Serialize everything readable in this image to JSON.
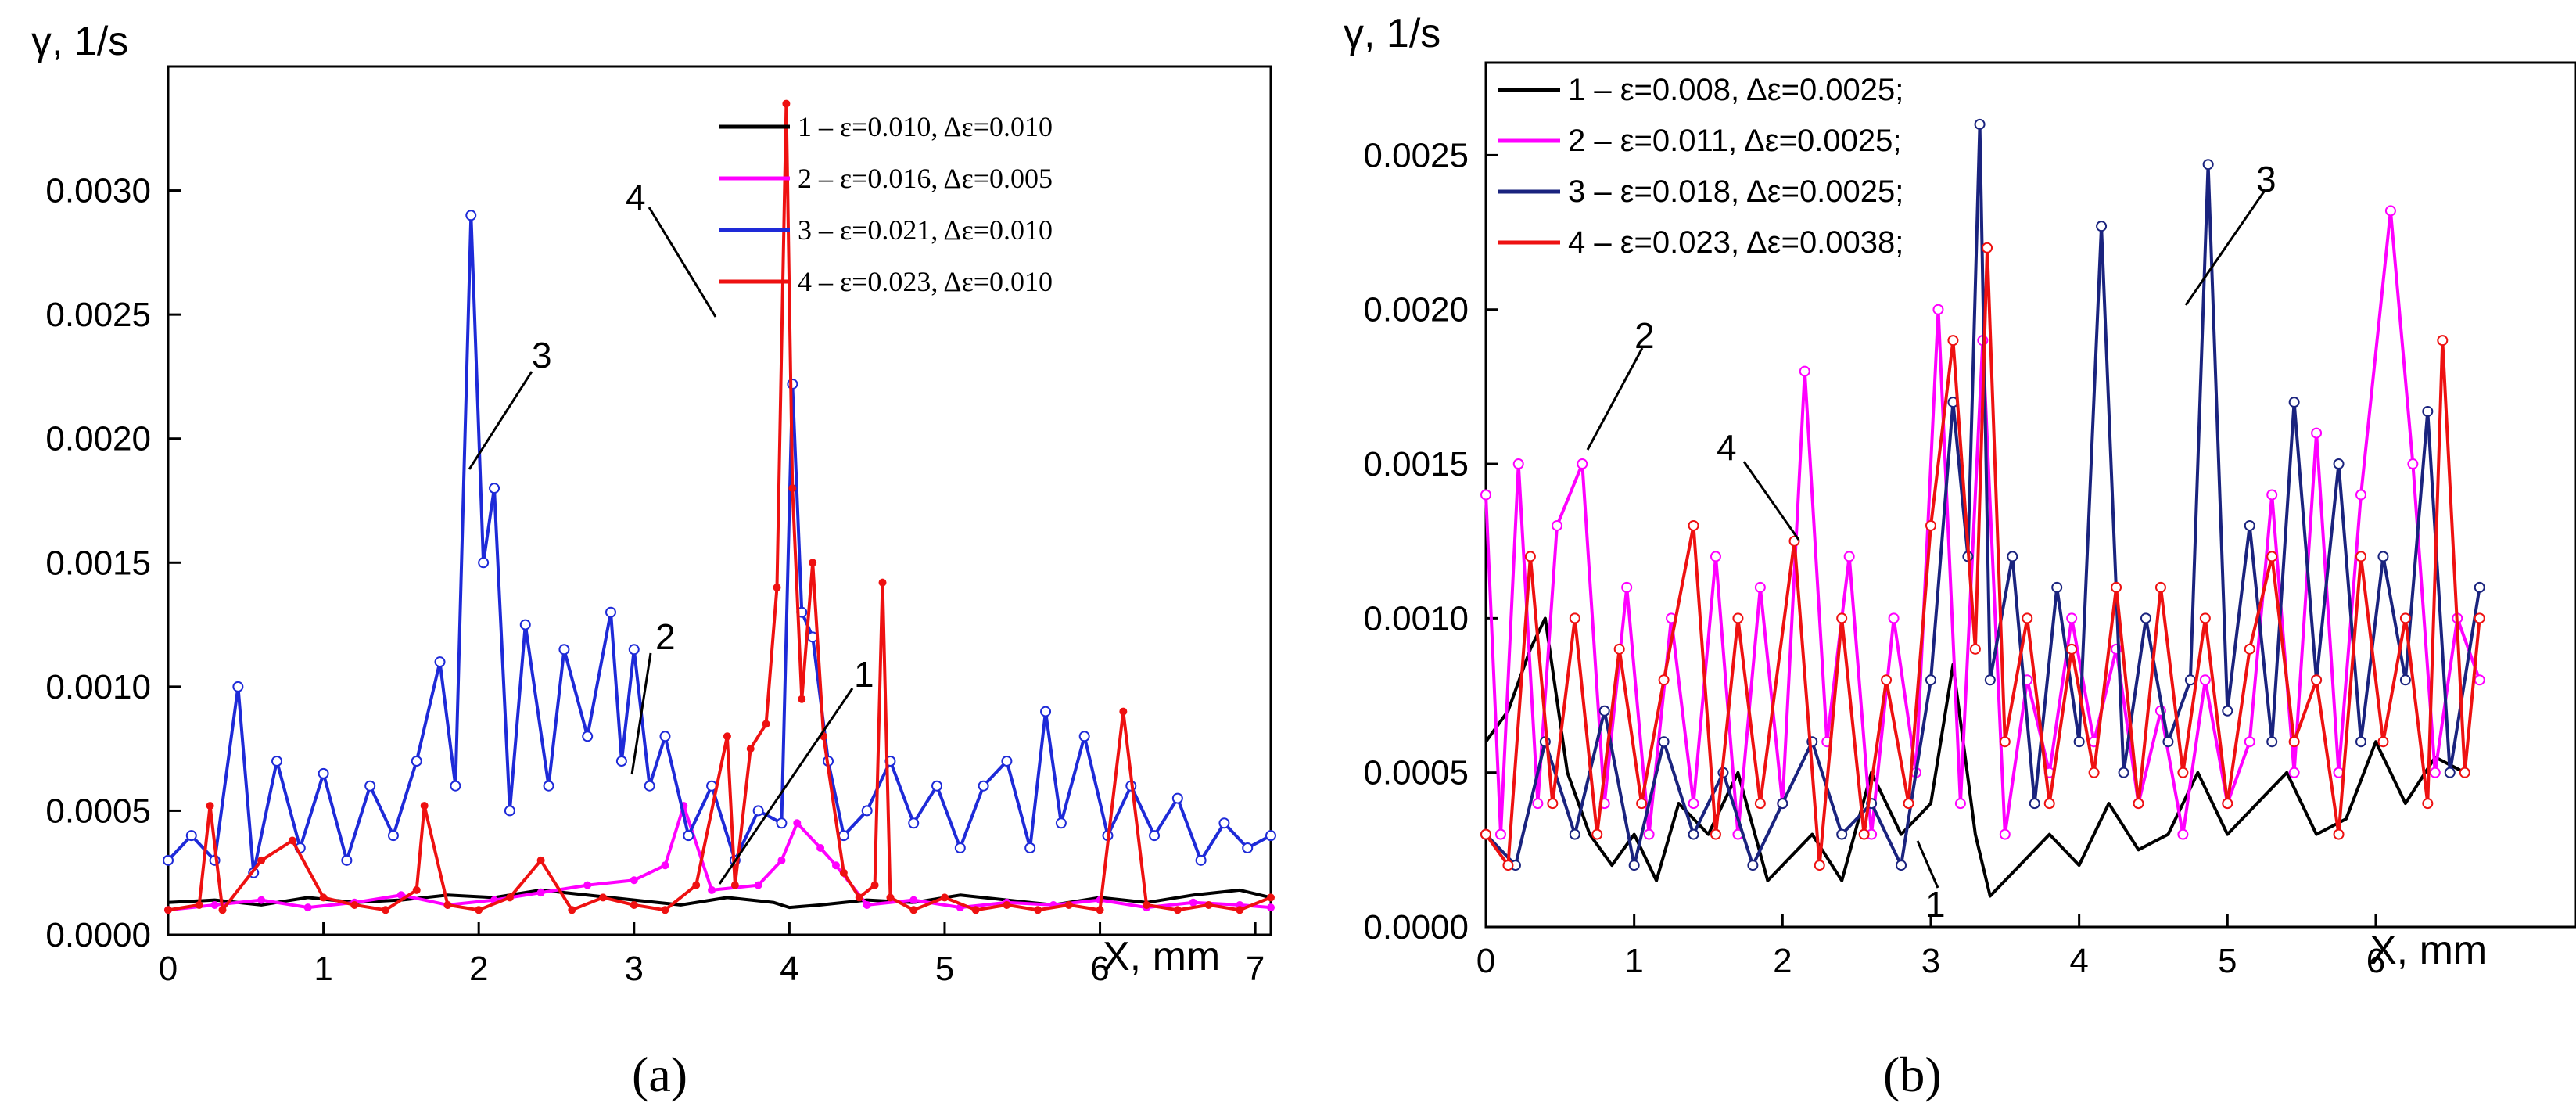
{
  "chart_data": [
    {
      "type": "line",
      "panel_label": "(a)",
      "ylabel": "γ, 1/s",
      "xlabel": "X, mm",
      "xlim": [
        0,
        7.1
      ],
      "ylim": [
        0,
        0.0035
      ],
      "xticks": [
        "0",
        "1",
        "2",
        "3",
        "4",
        "5",
        "6",
        "7"
      ],
      "yticks": [
        "0.0000",
        "0.0005",
        "0.0010",
        "0.0015",
        "0.0020",
        "0.0025",
        "0.0030"
      ],
      "legend_position": "top-right",
      "series": [
        {
          "name": "1 – ε=0.010, Δε=0.010",
          "color": "#000000",
          "marker": "none",
          "x": [
            0,
            0.3,
            0.6,
            0.9,
            1.2,
            1.5,
            1.8,
            2.1,
            2.4,
            2.7,
            3.0,
            3.3,
            3.6,
            3.9,
            4.0,
            4.2,
            4.5,
            4.8,
            5.1,
            5.4,
            5.7,
            6.0,
            6.3,
            6.6,
            6.9,
            7.1
          ],
          "y": [
            0.00013,
            0.00014,
            0.00012,
            0.00015,
            0.00013,
            0.00014,
            0.00016,
            0.00015,
            0.00018,
            0.00016,
            0.00014,
            0.00012,
            0.00015,
            0.00013,
            0.00011,
            0.00012,
            0.00014,
            0.00013,
            0.00016,
            0.00014,
            0.00012,
            0.00015,
            0.00013,
            0.00016,
            0.00018,
            0.00015
          ]
        },
        {
          "name": "2 – ε=0.016, Δε=0.005",
          "color": "#ff00ff",
          "marker": "dot",
          "x": [
            0,
            0.3,
            0.6,
            0.9,
            1.2,
            1.5,
            1.8,
            2.1,
            2.4,
            2.7,
            3.0,
            3.2,
            3.32,
            3.5,
            3.8,
            3.95,
            4.05,
            4.2,
            4.3,
            4.5,
            4.8,
            5.1,
            5.4,
            5.7,
            6.0,
            6.3,
            6.6,
            6.9,
            7.1
          ],
          "y": [
            0.0001,
            0.00012,
            0.00014,
            0.00011,
            0.00013,
            0.00016,
            0.00012,
            0.00014,
            0.00017,
            0.0002,
            0.00022,
            0.00028,
            0.00052,
            0.00018,
            0.0002,
            0.0003,
            0.00045,
            0.00035,
            0.00028,
            0.00012,
            0.00014,
            0.00011,
            0.00013,
            0.00012,
            0.00014,
            0.00011,
            0.00013,
            0.00012,
            0.00011
          ]
        },
        {
          "name": "3 – ε=0.021, Δε=0.010",
          "color": "#1e2ad8",
          "marker": "circle",
          "x": [
            0,
            0.15,
            0.3,
            0.45,
            0.55,
            0.7,
            0.85,
            1.0,
            1.15,
            1.3,
            1.45,
            1.6,
            1.75,
            1.85,
            1.95,
            2.03,
            2.1,
            2.2,
            2.3,
            2.45,
            2.55,
            2.7,
            2.85,
            2.92,
            3.0,
            3.1,
            3.2,
            3.35,
            3.5,
            3.65,
            3.8,
            3.95,
            4.02,
            4.08,
            4.15,
            4.25,
            4.35,
            4.5,
            4.65,
            4.8,
            4.95,
            5.1,
            5.25,
            5.4,
            5.55,
            5.65,
            5.75,
            5.9,
            6.05,
            6.2,
            6.35,
            6.5,
            6.65,
            6.8,
            6.95,
            7.1
          ],
          "y": [
            0.0003,
            0.0004,
            0.0003,
            0.001,
            0.00025,
            0.0007,
            0.00035,
            0.00065,
            0.0003,
            0.0006,
            0.0004,
            0.0007,
            0.0011,
            0.0006,
            0.0029,
            0.0015,
            0.0018,
            0.0005,
            0.00125,
            0.0006,
            0.00115,
            0.0008,
            0.0013,
            0.0007,
            0.00115,
            0.0006,
            0.0008,
            0.0004,
            0.0006,
            0.0003,
            0.0005,
            0.00045,
            0.00222,
            0.0013,
            0.0012,
            0.0007,
            0.0004,
            0.0005,
            0.0007,
            0.00045,
            0.0006,
            0.00035,
            0.0006,
            0.0007,
            0.00035,
            0.0009,
            0.00045,
            0.0008,
            0.0004,
            0.0006,
            0.0004,
            0.00055,
            0.0003,
            0.00045,
            0.00035,
            0.0004
          ]
        },
        {
          "name": "4 – ε=0.023, Δε=0.010",
          "color": "#ee1111",
          "marker": "dot",
          "x": [
            0,
            0.2,
            0.27,
            0.35,
            0.6,
            0.8,
            1.0,
            1.2,
            1.4,
            1.6,
            1.65,
            1.8,
            2.0,
            2.2,
            2.4,
            2.6,
            2.8,
            3.0,
            3.2,
            3.4,
            3.6,
            3.65,
            3.75,
            3.85,
            3.92,
            3.98,
            4.02,
            4.08,
            4.15,
            4.22,
            4.35,
            4.45,
            4.55,
            4.6,
            4.65,
            4.8,
            5.0,
            5.2,
            5.4,
            5.6,
            5.8,
            6.0,
            6.15,
            6.3,
            6.5,
            6.7,
            6.9,
            7.1
          ],
          "y": [
            0.0001,
            0.00012,
            0.00052,
            0.0001,
            0.0003,
            0.00038,
            0.00015,
            0.00012,
            0.0001,
            0.00018,
            0.00052,
            0.00012,
            0.0001,
            0.00015,
            0.0003,
            0.0001,
            0.00015,
            0.00012,
            0.0001,
            0.0002,
            0.0008,
            0.0002,
            0.00075,
            0.00085,
            0.0014,
            0.00335,
            0.0018,
            0.00095,
            0.0015,
            0.0008,
            0.00025,
            0.00015,
            0.0002,
            0.00142,
            0.00015,
            0.0001,
            0.00015,
            0.0001,
            0.00012,
            0.0001,
            0.00012,
            0.0001,
            0.0009,
            0.00012,
            0.0001,
            0.00012,
            0.0001,
            0.00015
          ]
        }
      ],
      "annotations": [
        "1",
        "2",
        "3",
        "4"
      ]
    },
    {
      "type": "line",
      "panel_label": "(b)",
      "ylabel": "γ, 1/s",
      "xlabel": "X, mm",
      "xlim": [
        0,
        7.35
      ],
      "ylim": [
        0,
        0.0028
      ],
      "xticks": [
        "0",
        "1",
        "2",
        "3",
        "4",
        "5",
        "6"
      ],
      "yticks": [
        "0.0000",
        "0.0005",
        "0.0010",
        "0.0015",
        "0.0020",
        "0.0025"
      ],
      "legend_position": "top-left",
      "series": [
        {
          "name": "1 – ε=0.008, Δε=0.0025;",
          "color": "#000000",
          "marker": "none",
          "x": [
            0,
            0.15,
            0.3,
            0.4,
            0.55,
            0.7,
            0.85,
            1.0,
            1.15,
            1.3,
            1.5,
            1.7,
            1.9,
            2.0,
            2.2,
            2.4,
            2.6,
            2.8,
            3.0,
            3.15,
            3.3,
            3.4,
            3.6,
            3.8,
            4.0,
            4.2,
            4.4,
            4.6,
            4.8,
            5.0,
            5.2,
            5.4,
            5.6,
            5.8,
            6.0,
            6.2,
            6.4,
            6.6
          ],
          "y": [
            0.0006,
            0.0007,
            0.0009,
            0.001,
            0.0005,
            0.0003,
            0.0002,
            0.0003,
            0.00015,
            0.0004,
            0.0003,
            0.0005,
            0.00015,
            0.0002,
            0.0003,
            0.00015,
            0.0005,
            0.0003,
            0.0004,
            0.00085,
            0.0003,
            0.0001,
            0.0002,
            0.0003,
            0.0002,
            0.0004,
            0.00025,
            0.0003,
            0.0005,
            0.0003,
            0.0004,
            0.0005,
            0.0003,
            0.00035,
            0.0006,
            0.0004,
            0.00055,
            0.0005
          ]
        },
        {
          "name": "2 – ε=0.011, Δε=0.0025;",
          "color": "#ff00ff",
          "marker": "circle",
          "x": [
            0,
            0.1,
            0.22,
            0.35,
            0.48,
            0.65,
            0.8,
            0.95,
            1.1,
            1.25,
            1.4,
            1.55,
            1.7,
            1.85,
            2.0,
            2.15,
            2.3,
            2.45,
            2.6,
            2.75,
            2.9,
            3.05,
            3.2,
            3.35,
            3.5,
            3.65,
            3.8,
            3.95,
            4.1,
            4.25,
            4.4,
            4.55,
            4.7,
            4.85,
            5.0,
            5.15,
            5.3,
            5.45,
            5.6,
            5.75,
            5.9,
            6.1,
            6.25,
            6.4,
            6.55,
            6.7
          ],
          "y": [
            0.0014,
            0.0003,
            0.0015,
            0.0004,
            0.0013,
            0.0015,
            0.0004,
            0.0011,
            0.0003,
            0.001,
            0.0004,
            0.0012,
            0.0003,
            0.0011,
            0.0004,
            0.0018,
            0.0006,
            0.0012,
            0.0003,
            0.001,
            0.0005,
            0.002,
            0.0004,
            0.0019,
            0.0003,
            0.0008,
            0.0005,
            0.001,
            0.0006,
            0.0009,
            0.0004,
            0.0007,
            0.0003,
            0.0008,
            0.0004,
            0.0006,
            0.0014,
            0.0005,
            0.0016,
            0.0005,
            0.0014,
            0.00232,
            0.0015,
            0.0005,
            0.001,
            0.0008
          ]
        },
        {
          "name": "3 – ε=0.018, Δε=0.0025;",
          "color": "#1a237e",
          "marker": "circle",
          "x": [
            0,
            0.2,
            0.4,
            0.6,
            0.8,
            1.0,
            1.2,
            1.4,
            1.6,
            1.8,
            2.0,
            2.2,
            2.4,
            2.6,
            2.8,
            3.0,
            3.15,
            3.25,
            3.33,
            3.4,
            3.55,
            3.7,
            3.85,
            4.0,
            4.15,
            4.3,
            4.45,
            4.6,
            4.75,
            4.87,
            5.0,
            5.15,
            5.3,
            5.45,
            5.6,
            5.75,
            5.9,
            6.05,
            6.2,
            6.35,
            6.5,
            6.7
          ],
          "y": [
            0.0003,
            0.0002,
            0.0006,
            0.0003,
            0.0007,
            0.0002,
            0.0006,
            0.0003,
            0.0005,
            0.0002,
            0.0004,
            0.0006,
            0.0003,
            0.0004,
            0.0002,
            0.0008,
            0.0017,
            0.0012,
            0.0026,
            0.0008,
            0.0012,
            0.0004,
            0.0011,
            0.0006,
            0.00227,
            0.0005,
            0.001,
            0.0006,
            0.0008,
            0.00247,
            0.0007,
            0.0013,
            0.0006,
            0.0017,
            0.0008,
            0.0015,
            0.0006,
            0.0012,
            0.0008,
            0.00167,
            0.0005,
            0.0011
          ]
        },
        {
          "name": "4 – ε=0.023, Δε=0.0038;",
          "color": "#ee1111",
          "marker": "circle",
          "x": [
            0,
            0.15,
            0.3,
            0.45,
            0.6,
            0.75,
            0.9,
            1.05,
            1.2,
            1.4,
            1.55,
            1.7,
            1.85,
            2.08,
            2.25,
            2.4,
            2.55,
            2.7,
            2.85,
            3.0,
            3.15,
            3.3,
            3.38,
            3.5,
            3.65,
            3.8,
            3.95,
            4.1,
            4.25,
            4.4,
            4.55,
            4.7,
            4.85,
            5.0,
            5.15,
            5.3,
            5.45,
            5.6,
            5.75,
            5.9,
            6.05,
            6.2,
            6.35,
            6.45,
            6.6,
            6.7
          ],
          "y": [
            0.0003,
            0.0002,
            0.0012,
            0.0004,
            0.001,
            0.0003,
            0.0009,
            0.0004,
            0.0008,
            0.0013,
            0.0003,
            0.001,
            0.0004,
            0.00125,
            0.0002,
            0.001,
            0.0003,
            0.0008,
            0.0004,
            0.0013,
            0.0019,
            0.0009,
            0.0022,
            0.0006,
            0.001,
            0.0004,
            0.0009,
            0.0005,
            0.0011,
            0.0004,
            0.0011,
            0.0005,
            0.001,
            0.0004,
            0.0009,
            0.0012,
            0.0006,
            0.0008,
            0.0003,
            0.0012,
            0.0006,
            0.001,
            0.0004,
            0.0019,
            0.0005,
            0.001
          ]
        }
      ],
      "annotations": [
        "1",
        "2",
        "3",
        "4"
      ]
    }
  ]
}
